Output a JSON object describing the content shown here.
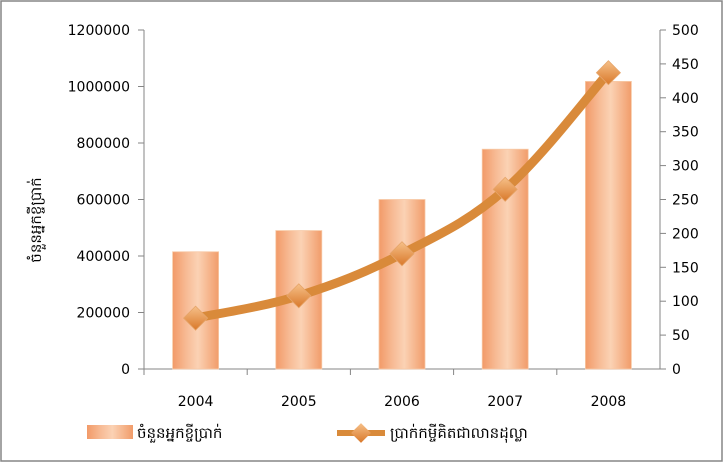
{
  "chart_data": {
    "type": "bar",
    "title": "",
    "categories": [
      "2004",
      "2005",
      "2006",
      "2007",
      "2008"
    ],
    "series": [
      {
        "name": "ចំនួនអ្នកខ្ចីប្រាក់",
        "type": "bar",
        "axis": "left",
        "values": [
          415000,
          490000,
          600000,
          778000,
          1018000
        ]
      },
      {
        "name": "ប្រាក់កម្ចីគិតជាលានដុល្លា",
        "type": "line",
        "axis": "right",
        "values": [
          75,
          108,
          170,
          265,
          437
        ]
      }
    ],
    "ylabel": "ចំនួនអ្នកខ្ចីប្រាក់",
    "ylim": [
      0,
      1200000
    ],
    "yticks": [
      "0",
      "200000",
      "400000",
      "600000",
      "800000",
      "1000000",
      "1200000"
    ],
    "y2lim": [
      0,
      500
    ],
    "y2ticks": [
      "0",
      "50",
      "100",
      "150",
      "200",
      "250",
      "300",
      "350",
      "400",
      "450",
      "500"
    ],
    "grid": false,
    "legend": "bottom",
    "colors": {
      "bar": "#f4a87a",
      "bar_light": "#fbd3b6",
      "line": "#d98a3a",
      "marker": "#e8892c",
      "frame": "#858585"
    }
  }
}
